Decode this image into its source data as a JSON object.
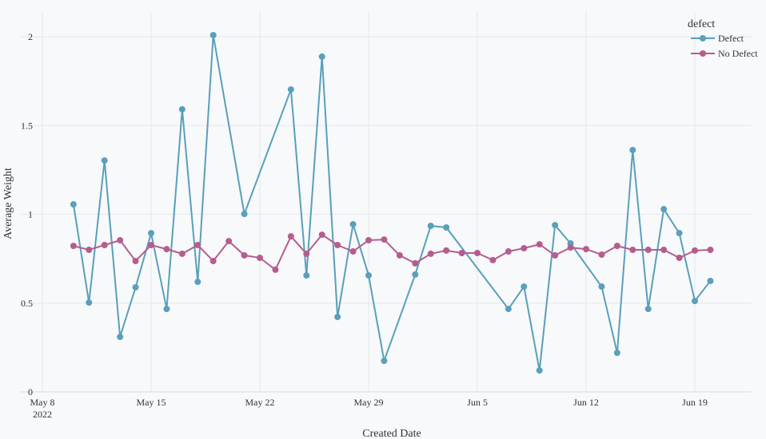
{
  "chart_data": {
    "type": "line",
    "title": "",
    "xlabel": "Created Date",
    "ylabel": "Average Weight",
    "xlim": [
      "2022-05-08",
      "2022-06-22"
    ],
    "ylim": [
      0,
      2.04
    ],
    "grid": true,
    "x_ticks": [
      {
        "date": "2022-05-08",
        "label": "May 8",
        "sublabel": "2022"
      },
      {
        "date": "2022-05-15",
        "label": "May 15"
      },
      {
        "date": "2022-05-22",
        "label": "May 22"
      },
      {
        "date": "2022-05-29",
        "label": "May 29"
      },
      {
        "date": "2022-06-05",
        "label": "Jun 5"
      },
      {
        "date": "2022-06-12",
        "label": "Jun 12"
      },
      {
        "date": "2022-06-19",
        "label": "Jun 19"
      }
    ],
    "y_ticks": [
      {
        "value": 0,
        "label": "0"
      },
      {
        "value": 0.5,
        "label": "0.5"
      },
      {
        "value": 1,
        "label": "1"
      },
      {
        "value": 1.5,
        "label": "1.5"
      },
      {
        "value": 2,
        "label": "2"
      }
    ],
    "legend": {
      "title": "defect",
      "position": "top-right"
    },
    "series": [
      {
        "name": "Defect",
        "color": "#5a9fbb",
        "x": [
          "2022-05-10",
          "2022-05-11",
          "2022-05-12",
          "2022-05-13",
          "2022-05-14",
          "2022-05-15",
          "2022-05-16",
          "2022-05-17",
          "2022-05-18",
          "2022-05-19",
          "2022-05-21",
          "2022-05-24",
          "2022-05-25",
          "2022-05-26",
          "2022-05-27",
          "2022-05-28",
          "2022-05-29",
          "2022-05-30",
          "2022-06-01",
          "2022-06-02",
          "2022-06-03",
          "2022-06-07",
          "2022-06-08",
          "2022-06-09",
          "2022-06-10",
          "2022-06-11",
          "2022-06-13",
          "2022-06-14",
          "2022-06-15",
          "2022-06-16",
          "2022-06-17",
          "2022-06-18",
          "2022-06-19",
          "2022-06-20"
        ],
        "y": [
          1.056,
          0.503,
          1.303,
          0.31,
          0.589,
          0.894,
          0.467,
          1.591,
          0.62,
          2.009,
          1.002,
          1.703,
          0.656,
          1.888,
          0.422,
          0.944,
          0.656,
          0.175,
          0.661,
          0.935,
          0.926,
          0.467,
          0.593,
          0.121,
          0.939,
          0.836,
          0.593,
          0.22,
          1.362,
          0.467,
          1.029,
          0.894,
          0.512,
          0.625
        ]
      },
      {
        "name": "No Defect",
        "color": "#b55d8e",
        "x": [
          "2022-05-10",
          "2022-05-11",
          "2022-05-12",
          "2022-05-13",
          "2022-05-14",
          "2022-05-15",
          "2022-05-16",
          "2022-05-17",
          "2022-05-18",
          "2022-05-19",
          "2022-05-20",
          "2022-05-21",
          "2022-05-22",
          "2022-05-23",
          "2022-05-24",
          "2022-05-25",
          "2022-05-26",
          "2022-05-27",
          "2022-05-28",
          "2022-05-29",
          "2022-05-30",
          "2022-05-31",
          "2022-06-01",
          "2022-06-02",
          "2022-06-03",
          "2022-06-04",
          "2022-06-05",
          "2022-06-06",
          "2022-06-07",
          "2022-06-08",
          "2022-06-09",
          "2022-06-10",
          "2022-06-11",
          "2022-06-12",
          "2022-06-13",
          "2022-06-14",
          "2022-06-15",
          "2022-06-16",
          "2022-06-17",
          "2022-06-18",
          "2022-06-19",
          "2022-06-20"
        ],
        "y": [
          0.822,
          0.8,
          0.827,
          0.854,
          0.737,
          0.827,
          0.804,
          0.778,
          0.827,
          0.737,
          0.849,
          0.769,
          0.755,
          0.688,
          0.876,
          0.778,
          0.885,
          0.827,
          0.791,
          0.854,
          0.858,
          0.769,
          0.724,
          0.778,
          0.796,
          0.782,
          0.782,
          0.742,
          0.791,
          0.809,
          0.831,
          0.769,
          0.813,
          0.804,
          0.773,
          0.822,
          0.8,
          0.8,
          0.8,
          0.755,
          0.796,
          0.8
        ]
      }
    ]
  }
}
